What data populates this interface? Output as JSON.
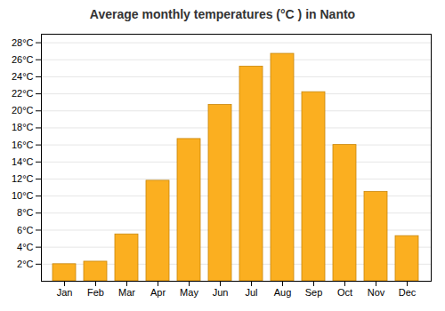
{
  "chart_data": {
    "type": "bar",
    "title": "Average monthly temperatures (°C ) in Nanto",
    "categories": [
      "Jan",
      "Feb",
      "Mar",
      "Apr",
      "May",
      "Jun",
      "Jul",
      "Aug",
      "Sep",
      "Oct",
      "Nov",
      "Dec"
    ],
    "values": [
      2.0,
      2.3,
      5.5,
      11.8,
      16.7,
      20.7,
      25.2,
      26.7,
      22.2,
      16.0,
      10.5,
      5.3
    ],
    "color": "#FBAF20",
    "ylim": [
      0,
      29
    ],
    "yticks": [
      {
        "value": 2,
        "label": "2°C"
      },
      {
        "value": 4,
        "label": "4°C"
      },
      {
        "value": 6,
        "label": "6°C"
      },
      {
        "value": 8,
        "label": "8°C"
      },
      {
        "value": 10,
        "label": "10°C"
      },
      {
        "value": 12,
        "label": "12°C"
      },
      {
        "value": 14,
        "label": "14°C"
      },
      {
        "value": 16,
        "label": "16°C"
      },
      {
        "value": 18,
        "label": "18°C"
      },
      {
        "value": 20,
        "label": "20°C"
      },
      {
        "value": 22,
        "label": "22°C"
      },
      {
        "value": 24,
        "label": "24°C"
      },
      {
        "value": 26,
        "label": "26°C"
      },
      {
        "value": 28,
        "label": "28°C"
      }
    ],
    "grid": true
  }
}
